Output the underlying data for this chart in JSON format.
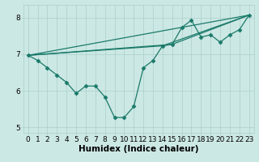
{
  "main_line": {
    "x": [
      0,
      1,
      2,
      3,
      4,
      5,
      6,
      7,
      8,
      9,
      10,
      11,
      12,
      13,
      14,
      15,
      16,
      17,
      18,
      19,
      20,
      21,
      22,
      23
    ],
    "y": [
      6.97,
      6.83,
      6.63,
      6.43,
      6.23,
      5.93,
      6.13,
      6.13,
      5.83,
      5.27,
      5.27,
      5.57,
      6.63,
      6.83,
      7.23,
      7.27,
      7.73,
      7.93,
      7.47,
      7.53,
      7.33,
      7.53,
      7.67,
      8.07
    ]
  },
  "ref_lines": [
    {
      "x": [
        0,
        23
      ],
      "y": [
        6.97,
        8.07
      ]
    },
    {
      "x": [
        0,
        14,
        23
      ],
      "y": [
        6.97,
        7.23,
        8.07
      ]
    },
    {
      "x": [
        0,
        15,
        23
      ],
      "y": [
        6.97,
        7.27,
        8.07
      ]
    }
  ],
  "color": "#1a7a6a",
  "bg_color": "#cce8e4",
  "grid_color": "#aacfcb",
  "xlabel": "Humidex (Indice chaleur)",
  "xlim": [
    -0.5,
    23.5
  ],
  "ylim": [
    4.85,
    8.35
  ],
  "yticks": [
    5,
    6,
    7,
    8
  ],
  "xticks": [
    0,
    1,
    2,
    3,
    4,
    5,
    6,
    7,
    8,
    9,
    10,
    11,
    12,
    13,
    14,
    15,
    16,
    17,
    18,
    19,
    20,
    21,
    22,
    23
  ],
  "marker": "D",
  "markersize": 2.5,
  "linewidth": 0.9,
  "xlabel_fontsize": 7.5,
  "tick_fontsize": 6.5
}
